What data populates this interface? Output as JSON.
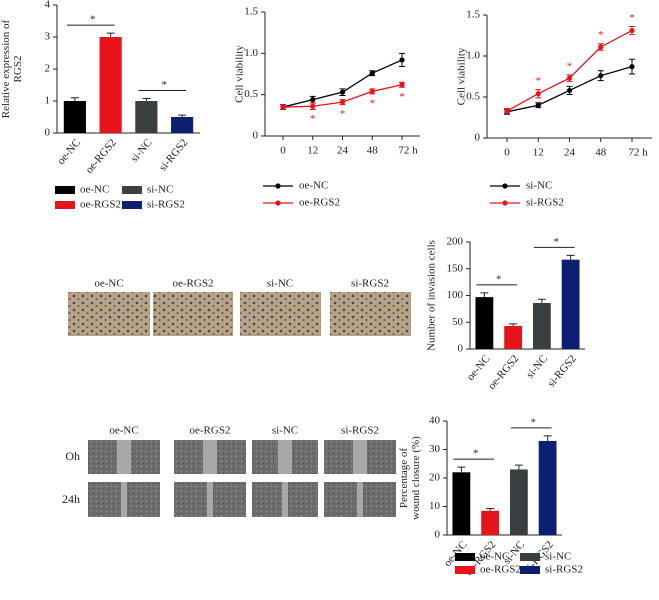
{
  "chart_data": [
    {
      "type": "bar",
      "ylabel": [
        "Relative expression of",
        "RGS2"
      ],
      "categories": [
        "oe-NC",
        "oe-RGS2",
        "si-NC",
        "si-RGS2"
      ],
      "values": [
        1,
        3,
        1,
        0.5
      ],
      "errors": [
        0.1,
        0.12,
        0.08,
        0.06
      ],
      "colors": [
        "#000000",
        "#e8141b",
        "#3a3f41",
        "#0d1f73"
      ],
      "ylim": [
        0,
        4
      ],
      "yticks": [
        0,
        1,
        2,
        3,
        4
      ],
      "significance": [
        {
          "between": [
            "oe-NC",
            "oe-RGS2"
          ],
          "label": "*"
        },
        {
          "between": [
            "si-NC",
            "si-RGS2"
          ],
          "label": "*"
        }
      ],
      "legend": true
    },
    {
      "type": "line",
      "ylabel": "Cell viability",
      "categories": [
        "0",
        "12",
        "24",
        "48",
        "72 h"
      ],
      "series": [
        {
          "name": "oe-NC",
          "color": "#000000",
          "values": [
            0.35,
            0.44,
            0.53,
            0.76,
            0.92
          ],
          "errors": [
            0.03,
            0.04,
            0.04,
            0.03,
            0.08
          ]
        },
        {
          "name": "oe-RGS2",
          "color": "#e8141b",
          "values": [
            0.35,
            0.36,
            0.41,
            0.54,
            0.62
          ],
          "errors": [
            0.03,
            0.04,
            0.03,
            0.03,
            0.03
          ],
          "annotations": [
            null,
            "*",
            "*",
            "*",
            "*"
          ],
          "annotation_position": "below"
        }
      ],
      "ylim": [
        0,
        1.5
      ],
      "yticks": [
        0,
        0.5,
        {
          "value": 1,
          "label": "1.0"
        },
        1.5
      ],
      "legend": true
    },
    {
      "type": "line",
      "ylabel": "Cell viability",
      "categories": [
        "0",
        "12",
        "24",
        "48",
        "72 h"
      ],
      "series": [
        {
          "name": "si-NC",
          "color": "#000000",
          "values": [
            0.32,
            0.4,
            0.58,
            0.76,
            0.87
          ],
          "errors": [
            0.03,
            0.03,
            0.05,
            0.06,
            0.09
          ]
        },
        {
          "name": "si-RGS2",
          "color": "#e8141b",
          "values": [
            0.33,
            0.54,
            0.73,
            1.11,
            1.31
          ],
          "errors": [
            0.03,
            0.05,
            0.04,
            0.04,
            0.05
          ],
          "annotations": [
            null,
            "*",
            "*",
            "*",
            "*"
          ],
          "annotation_position": "above"
        }
      ],
      "ylim": [
        0,
        1.5
      ],
      "yticks": [
        0,
        0.5,
        {
          "value": 1,
          "label": "1.0"
        },
        1.5
      ],
      "legend": true
    },
    {
      "type": "bar",
      "ylabel": "Number of invasion cells",
      "categories": [
        "oe-NC",
        "oe-RGS2",
        "si-NC",
        "si-RGS2"
      ],
      "values": [
        97,
        43,
        86,
        167
      ],
      "errors": [
        8,
        4,
        7,
        8
      ],
      "colors": [
        "#000000",
        "#e8141b",
        "#3a3f41",
        "#0d1f73"
      ],
      "ylim": [
        0,
        200
      ],
      "yticks": [
        0,
        50,
        100,
        150,
        200
      ],
      "significance": [
        {
          "between": [
            "oe-NC",
            "oe-RGS2"
          ],
          "label": "*"
        },
        {
          "between": [
            "si-NC",
            "si-RGS2"
          ],
          "label": "*"
        }
      ],
      "legend": false
    },
    {
      "type": "bar",
      "ylabel": [
        "Percentage of",
        "wound closure (%)"
      ],
      "categories": [
        "oe-NC",
        "oe-RGS2",
        "si-NC",
        "si-RGS2"
      ],
      "values": [
        22,
        8.5,
        23,
        33
      ],
      "errors": [
        1.8,
        0.8,
        1.5,
        1.8
      ],
      "colors": [
        "#000000",
        "#e8141b",
        "#3a3f41",
        "#0d1f73"
      ],
      "ylim": [
        0,
        40
      ],
      "yticks": [
        0,
        10,
        20,
        30,
        40
      ],
      "significance": [
        {
          "between": [
            "oe-NC",
            "oe-RGS2"
          ],
          "label": "*"
        },
        {
          "between": [
            "si-NC",
            "si-RGS2"
          ],
          "label": "*"
        }
      ],
      "legend": true
    }
  ],
  "invasion_images": {
    "labels": [
      "oe-NC",
      "oe-RGS2",
      "si-NC",
      "si-RGS2"
    ]
  },
  "wound_images": {
    "labels": [
      "oe-NC",
      "oe-RGS2",
      "si-NC",
      "si-RGS2"
    ],
    "rows": [
      "Oh",
      "24h"
    ]
  }
}
